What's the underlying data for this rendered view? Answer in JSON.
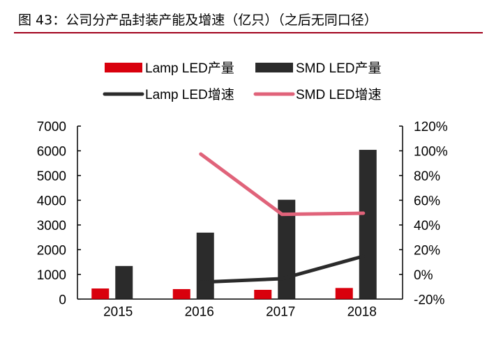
{
  "title": "图 43：公司分产品封装产能及增速（亿只）（之后无同口径）",
  "chart_data": {
    "type": "bar",
    "categories": [
      "2015",
      "2016",
      "2017",
      "2018"
    ],
    "series": [
      {
        "name": "Lamp LED产量",
        "kind": "bar",
        "axis": "left",
        "color": "#d9000d",
        "values": [
          430,
          405,
          375,
          450
        ]
      },
      {
        "name": "SMD LED产量",
        "kind": "bar",
        "axis": "left",
        "color": "#2b2b2b",
        "values": [
          1340,
          2690,
          4020,
          6040
        ]
      },
      {
        "name": "Lamp LED增速",
        "kind": "line",
        "axis": "right",
        "color": "#2b2b2b",
        "values": [
          null,
          -6.3,
          -3.5,
          14.7
        ]
      },
      {
        "name": "SMD LED增速",
        "kind": "line",
        "axis": "right",
        "color": "#e0637a",
        "values": [
          null,
          97.4,
          48.6,
          49.5
        ]
      }
    ],
    "ylim": [
      0,
      7000
    ],
    "yticks": [
      "0",
      "1000",
      "2000",
      "3000",
      "4000",
      "5000",
      "6000",
      "7000"
    ],
    "y2lim": [
      -20,
      120
    ],
    "y2ticks": [
      "-20%",
      "0%",
      "20%",
      "40%",
      "60%",
      "80%",
      "100%",
      "120%"
    ],
    "legend": "top",
    "grid": false
  }
}
